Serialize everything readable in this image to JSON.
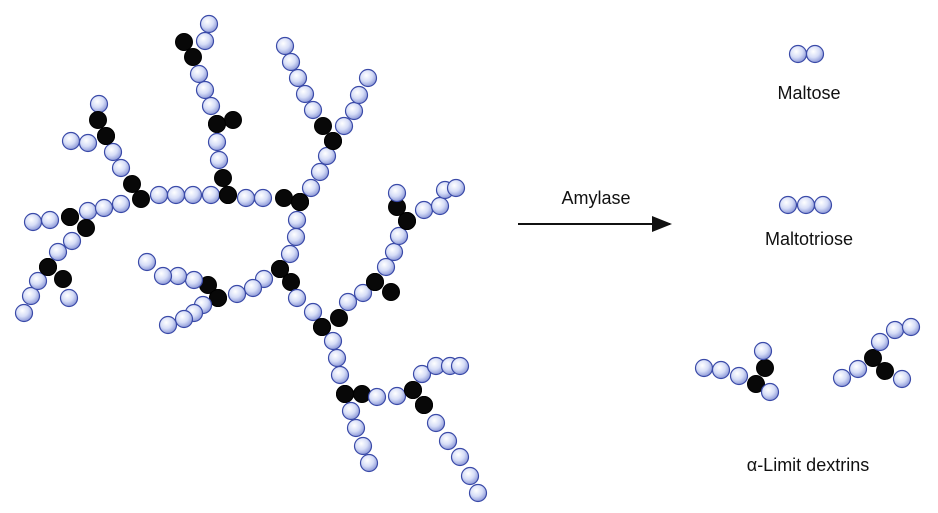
{
  "diagram": {
    "reaction": {
      "enzyme_label": "Amylase"
    },
    "products": [
      {
        "name": "Maltose",
        "glucose_units": 2
      },
      {
        "name": "Maltotriose",
        "glucose_units": 3
      },
      {
        "name": "α-Limit dextrins",
        "branched": true,
        "count_shown": 2
      }
    ]
  },
  "colors": {
    "glucose_fill": "#cdd6f5",
    "glucose_outline": "#3a4aa8",
    "branch_point": "#080808",
    "text": "#111111"
  }
}
